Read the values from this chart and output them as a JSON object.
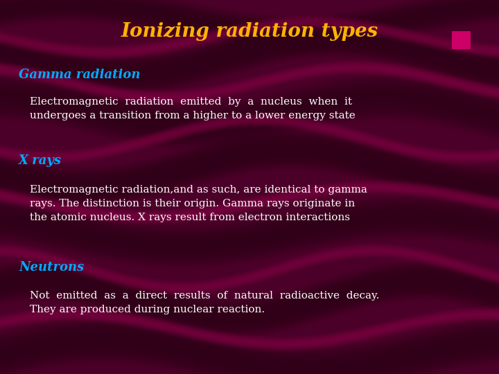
{
  "title": "Ionizing radiation types",
  "title_color": "#FFB300",
  "title_fontsize": 20,
  "bg_color": "#4A0028",
  "heading_color": "#00AAFF",
  "body_color": "#FFFFFF",
  "heading_fontsize": 13,
  "body_fontsize": 11,
  "sections": [
    {
      "heading": "Gamma radiation",
      "body": "Electromagnetic  radiation  emitted  by  a  nucleus  when  it\nundergoes a transition from a higher to a lower energy state"
    },
    {
      "heading": "X rays",
      "body": "Electromagnetic radiation,and as such, are identical to gamma\nrays. The distinction is their origin. Gamma rays originate in\nthe atomic nucleus. X rays result from electron interactions"
    },
    {
      "heading": "Neutrons",
      "body": "Not  emitted  as  a  direct  results  of  natural  radioactive  decay.\nThey are produced during nuclear reaction."
    }
  ],
  "corner_square_color": "#CC0066",
  "wave_dark_color": "#380020",
  "wave_mid_color": "#6B003A"
}
